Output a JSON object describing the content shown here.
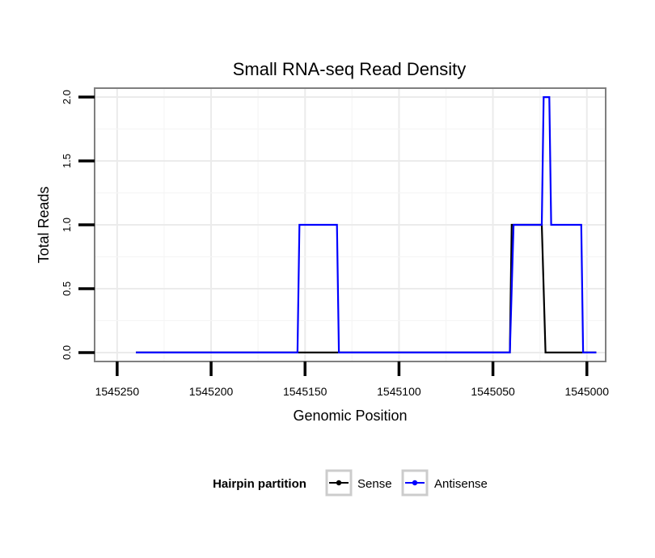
{
  "chart_data": {
    "type": "line",
    "title": "Small RNA-seq Read Density",
    "xlabel": "Genomic Position",
    "ylabel": "Total Reads",
    "xlim": [
      1545262,
      1544990
    ],
    "x_reversed": true,
    "ylim": [
      -0.07,
      2.07
    ],
    "x_ticks": [
      1545250,
      1545200,
      1545150,
      1545100,
      1545050,
      1545000
    ],
    "x_tick_labels": [
      "1545250",
      "1545200",
      "1545150",
      "1545100",
      "1545050",
      "1545000"
    ],
    "y_ticks": [
      0.0,
      0.5,
      1.0,
      1.5,
      2.0
    ],
    "y_tick_labels": [
      "0.0",
      "0.5",
      "1.0",
      "1.5",
      "2.0"
    ],
    "grid": true,
    "legend": {
      "title": "Hairpin partition",
      "position": "bottom",
      "entries": [
        "Sense",
        "Antisense"
      ]
    },
    "series": [
      {
        "name": "Sense",
        "color": "#000000",
        "x": [
          1545240,
          1545041,
          1545040,
          1545024,
          1545022,
          1544995
        ],
        "y": [
          0,
          0,
          1,
          1,
          0,
          0
        ]
      },
      {
        "name": "Antisense",
        "color": "#0000ff",
        "x": [
          1545240,
          1545154,
          1545153,
          1545133,
          1545132,
          1545041,
          1545039,
          1545024,
          1545023,
          1545020,
          1545019,
          1545003,
          1545002,
          1544995
        ],
        "y": [
          0,
          0,
          1,
          1,
          0,
          0,
          1,
          1,
          2,
          2,
          1,
          1,
          0,
          0
        ]
      }
    ]
  }
}
